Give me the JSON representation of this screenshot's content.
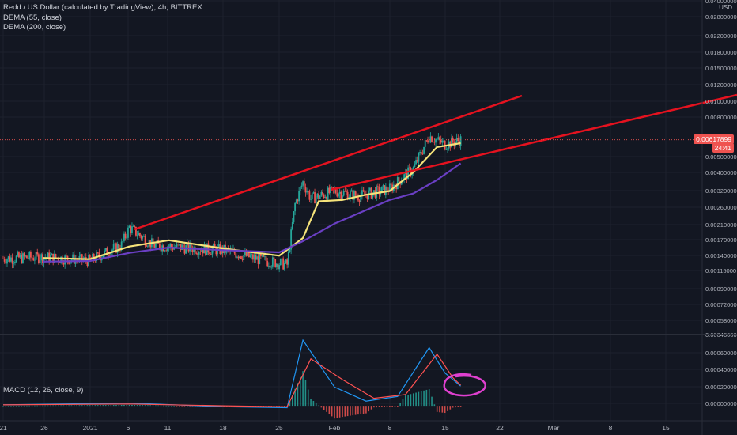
{
  "header": {
    "title": "Redd / US Dollar (calculated by TradingView), 4h, BITTREX",
    "indicator_1": "DEMA (55, close)",
    "indicator_2": "DEMA (200, close)",
    "macd_label": "MACD (12, 26, close, 9)",
    "currency": "USD",
    "last_price": "0.00617899",
    "countdown": "24:41"
  },
  "colors": {
    "background": "#131722",
    "grid": "#1e222d",
    "axis_text": "#b2b5be",
    "up": "#26a69a",
    "down": "#ef5350",
    "dema55": "#f5e37a",
    "dema200": "#6a3fc4",
    "trendline": "#e5121f",
    "macd_line": "#2196f3",
    "signal_line": "#ff5252",
    "annotation": "#e040d0"
  },
  "chart_data": [
    {
      "type": "line",
      "title": "Redd / US Dollar (calculated by TradingView), 4h, BITTREX",
      "scale": "log",
      "x_ticks": [
        "21",
        "26",
        "2021",
        "6",
        "11",
        "18",
        "25",
        "Feb",
        "8",
        "15",
        "22",
        "Mar",
        "8",
        "15"
      ],
      "y_ticks": [
        "0.04000000",
        "0.02800000",
        "0.02200000",
        "0.01800000",
        "0.01500000",
        "0.01200000",
        "0.01000000",
        "0.00800000",
        "0.00500000",
        "0.00400000",
        "0.00320000",
        "0.00260000",
        "0.00210000",
        "0.00170000",
        "0.00140000",
        "0.00115000",
        "0.00090000",
        "0.00072000",
        "0.00058000",
        "0.00046000"
      ],
      "ylim": [
        0.00046,
        0.04
      ],
      "series": [
        {
          "name": "DEMA (55, close)",
          "x": [
            "2020-12-26",
            "2021-01-01",
            "2021-01-06",
            "2021-01-11",
            "2021-01-18",
            "2021-01-25",
            "2021-01-28",
            "2021-01-30",
            "2021-02-02",
            "2021-02-05",
            "2021-02-08",
            "2021-02-11",
            "2021-02-14",
            "2021-02-17"
          ],
          "y": [
            0.00126,
            0.00124,
            0.00147,
            0.0016,
            0.00143,
            0.0013,
            0.00165,
            0.0027,
            0.00275,
            0.00295,
            0.0031,
            0.004,
            0.0056,
            0.0059
          ]
        },
        {
          "name": "DEMA (200, close)",
          "x": [
            "2020-12-26",
            "2021-01-01",
            "2021-01-06",
            "2021-01-11",
            "2021-01-18",
            "2021-01-25",
            "2021-01-28",
            "2021-02-01",
            "2021-02-05",
            "2021-02-08",
            "2021-02-11",
            "2021-02-14",
            "2021-02-17"
          ],
          "y": [
            0.0012,
            0.00121,
            0.00135,
            0.00145,
            0.0014,
            0.00136,
            0.00158,
            0.002,
            0.0024,
            0.00275,
            0.003,
            0.0036,
            0.0045
          ]
        }
      ],
      "candles_approx": [
        {
          "date": "2020-12-21",
          "close": 0.00125
        },
        {
          "date": "2020-12-26",
          "close": 0.00128
        },
        {
          "date": "2021-01-01",
          "close": 0.00122
        },
        {
          "date": "2021-01-05",
          "close": 0.0015
        },
        {
          "date": "2021-01-06",
          "close": 0.0019
        },
        {
          "date": "2021-01-09",
          "close": 0.0015
        },
        {
          "date": "2021-01-13",
          "close": 0.00145
        },
        {
          "date": "2021-01-18",
          "close": 0.0014
        },
        {
          "date": "2021-01-22",
          "close": 0.00125
        },
        {
          "date": "2021-01-26",
          "close": 0.00115
        },
        {
          "date": "2021-01-27",
          "close": 0.0026
        },
        {
          "date": "2021-01-28",
          "close": 0.0035
        },
        {
          "date": "2021-01-29",
          "close": 0.0028
        },
        {
          "date": "2021-02-01",
          "close": 0.0031
        },
        {
          "date": "2021-02-04",
          "close": 0.0029
        },
        {
          "date": "2021-02-08",
          "close": 0.0032
        },
        {
          "date": "2021-02-11",
          "close": 0.0042
        },
        {
          "date": "2021-02-13",
          "close": 0.0065
        },
        {
          "date": "2021-02-15",
          "close": 0.0058
        },
        {
          "date": "2021-02-17",
          "close": 0.00617899
        }
      ]
    },
    {
      "type": "line",
      "title": "MACD (12, 26, close, 9)",
      "y_ticks": [
        "0.00060000",
        "0.00040000",
        "0.00020000",
        "0.00000000"
      ],
      "ylim": [
        -0.0001,
        0.0007
      ],
      "series": [
        {
          "name": "MACD",
          "x": [
            "2020-12-21",
            "2021-01-06",
            "2021-01-18",
            "2021-01-26",
            "2021-01-28",
            "2021-02-01",
            "2021-02-05",
            "2021-02-09",
            "2021-02-13",
            "2021-02-15",
            "2021-02-17"
          ],
          "y": [
            1e-05,
            3e-05,
            -1e-05,
            -2e-05,
            0.0007,
            0.0002,
            5e-05,
            0.0001,
            0.00062,
            0.00035,
            0.00021
          ]
        },
        {
          "name": "Signal",
          "x": [
            "2020-12-21",
            "2021-01-06",
            "2021-01-18",
            "2021-01-26",
            "2021-01-29",
            "2021-02-02",
            "2021-02-06",
            "2021-02-10",
            "2021-02-14",
            "2021-02-16",
            "2021-02-17"
          ],
          "y": [
            1e-05,
            2e-05,
            0.0,
            -1e-05,
            0.0005,
            0.00028,
            8e-05,
            0.00012,
            0.00055,
            0.0003,
            0.00022
          ]
        }
      ]
    }
  ]
}
